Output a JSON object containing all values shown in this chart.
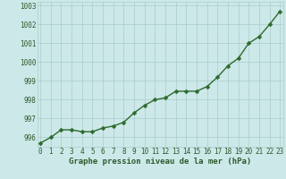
{
  "x": [
    0,
    1,
    2,
    3,
    4,
    5,
    6,
    7,
    8,
    9,
    10,
    11,
    12,
    13,
    14,
    15,
    16,
    17,
    18,
    19,
    20,
    21,
    22,
    23
  ],
  "y": [
    995.7,
    996.0,
    996.4,
    996.4,
    996.3,
    996.3,
    996.5,
    996.6,
    996.8,
    997.3,
    997.7,
    998.0,
    998.1,
    998.45,
    998.45,
    998.45,
    998.7,
    999.2,
    999.8,
    1000.2,
    1001.0,
    1001.35,
    1002.0,
    1002.7
  ],
  "line_color": "#2d6a2d",
  "marker_color": "#2d6a2d",
  "bg_color": "#cce8e8",
  "grid_color": "#aacccc",
  "text_color": "#2d5a2d",
  "xlabel": "Graphe pression niveau de la mer (hPa)",
  "ylim": [
    995.5,
    1003.2
  ],
  "yticks": [
    996,
    997,
    998,
    999,
    1000,
    1001,
    1002,
    1003
  ],
  "xticks": [
    0,
    1,
    2,
    3,
    4,
    5,
    6,
    7,
    8,
    9,
    10,
    11,
    12,
    13,
    14,
    15,
    16,
    17,
    18,
    19,
    20,
    21,
    22,
    23
  ],
  "xlabel_fontsize": 6.5,
  "tick_fontsize": 5.5,
  "line_width": 1.0,
  "marker_size": 2.5
}
